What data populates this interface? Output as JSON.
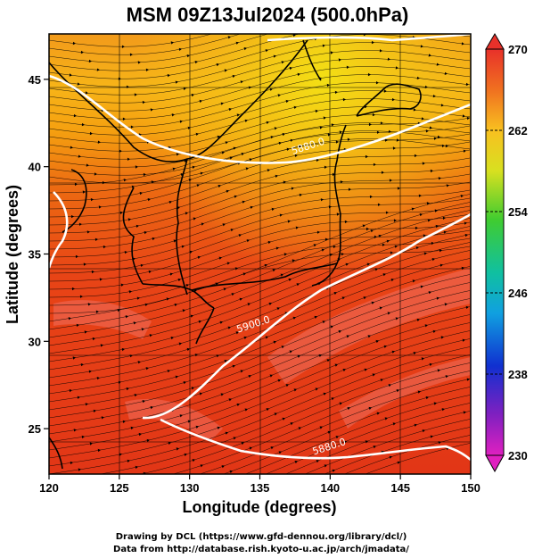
{
  "title": "MSM 09Z13Jul2024 (500.0hPa)",
  "xlabel": "Longitude (degrees)",
  "ylabel": "Latitude  (degrees)",
  "credits": [
    "Drawing by DCL (https://www.gfd-dennou.org/library/dcl/)",
    "Data from http://database.rish.kyoto-u.ac.jp/arch/jmadata/"
  ],
  "x_ticks": [
    {
      "value": 120,
      "label": "120"
    },
    {
      "value": 125,
      "label": "125"
    },
    {
      "value": 130,
      "label": "130"
    },
    {
      "value": 135,
      "label": "135"
    },
    {
      "value": 140,
      "label": "140"
    },
    {
      "value": 145,
      "label": "145"
    },
    {
      "value": 150,
      "label": "150"
    }
  ],
  "y_ticks": [
    {
      "value": 25,
      "label": "25"
    },
    {
      "value": 30,
      "label": "30"
    },
    {
      "value": 35,
      "label": "35"
    },
    {
      "value": 40,
      "label": "40"
    },
    {
      "value": 45,
      "label": "45"
    }
  ],
  "xlim": [
    120,
    150
  ],
  "ylim": [
    22.4,
    47.6
  ],
  "colorbar": {
    "range": [
      230,
      270
    ],
    "ticks": [
      {
        "value": 270,
        "label": "270"
      },
      {
        "value": 262,
        "label": "262"
      },
      {
        "value": 254,
        "label": "254"
      },
      {
        "value": 246,
        "label": "246"
      },
      {
        "value": 238,
        "label": "238"
      },
      {
        "value": 230,
        "label": "230"
      }
    ]
  },
  "contour_labels": [
    {
      "text": "5880.0",
      "lon": 138.5,
      "lat": 41.0
    },
    {
      "text": "5900.0",
      "lon": 134.6,
      "lat": 30.8
    },
    {
      "text": "5880.0",
      "lon": 140.0,
      "lat": 23.8
    }
  ]
}
